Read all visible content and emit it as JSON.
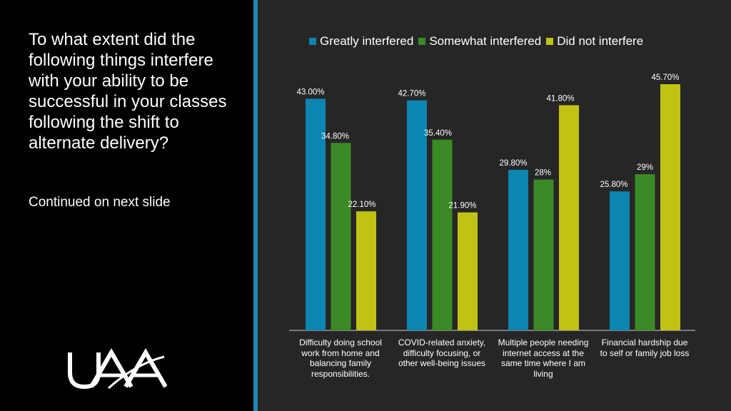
{
  "question": "To what extent did the following things interfere with your ability to be successful in your classes following the shift to alternate delivery?",
  "continued": "Continued on next slide",
  "logo": {
    "text": "UAA"
  },
  "colors": {
    "Greatly interfered": "#0d85b1",
    "Somewhat interfered": "#3a8a26",
    "Did not interfere": "#c0c214"
  },
  "chart_data": {
    "type": "bar",
    "categories": [
      "Difficulty doing school work from home and balancing family responsibilities.",
      "COVID-related anxiety, difficulty focusing, or other well-being issues",
      "Multiple people needing internet access at the same time where I am living",
      "Financial hardship due to self or family job loss"
    ],
    "series": [
      {
        "name": "Greatly interfered",
        "values": [
          43.0,
          42.7,
          29.8,
          25.8
        ],
        "labels": [
          "43.00%",
          "42.70%",
          "29.80%",
          "25.80%"
        ]
      },
      {
        "name": "Somewhat interfered",
        "values": [
          34.8,
          35.4,
          28,
          29
        ],
        "labels": [
          "34.80%",
          "35.40%",
          "28%",
          "29%"
        ]
      },
      {
        "name": "Did not interfere",
        "values": [
          22.1,
          21.9,
          41.8,
          45.7
        ],
        "labels": [
          "22.10%",
          "21.90%",
          "41.80%",
          "45.70%"
        ]
      }
    ],
    "ylim": [
      0,
      50
    ],
    "legend": "top",
    "grid": false
  }
}
